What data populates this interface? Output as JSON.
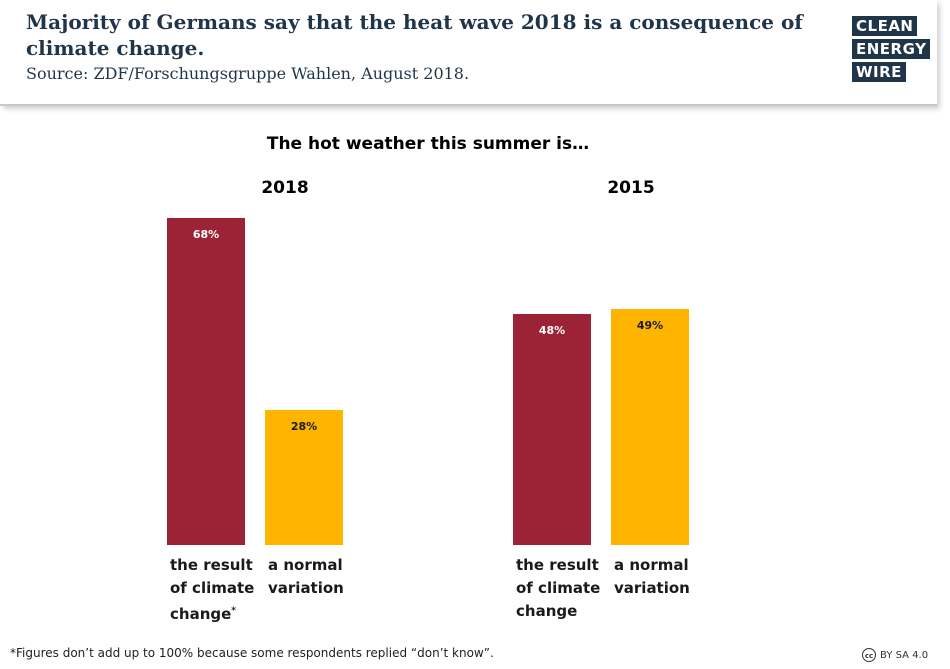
{
  "header": {
    "title": "Majority of Germans say that the heat wave 2018 is a consequence of climate change.",
    "source": "Source: ZDF/Forschungsgruppe Wahlen, August 2018.",
    "logo": [
      "CLEAN",
      "ENERGY",
      "WIRE"
    ]
  },
  "colors": {
    "climate_change": "#9b2335",
    "normal_variation": "#ffb400",
    "title": "#1f3549"
  },
  "chart_data": {
    "type": "bar",
    "title": "The hot weather this summer is…",
    "groups": [
      {
        "name": "2018",
        "bars": [
          {
            "category": "the result of climate change",
            "lines": [
              "the result",
              "of climate",
              "change"
            ],
            "footnote_mark": "*",
            "value": 68,
            "label": "68%"
          },
          {
            "category": "a normal variation",
            "lines": [
              "a normal",
              "variation"
            ],
            "value": 28,
            "label": "28%"
          }
        ]
      },
      {
        "name": "2015",
        "bars": [
          {
            "category": "the result of climate change",
            "lines": [
              "the result",
              "of climate",
              "change"
            ],
            "value": 48,
            "label": "48%"
          },
          {
            "category": "a normal variation",
            "lines": [
              "a normal",
              "variation"
            ],
            "value": 49,
            "label": "49%"
          }
        ]
      }
    ],
    "ylim": [
      0,
      68
    ],
    "legend": "none",
    "grid": false
  },
  "footer": {
    "footnote": "*Figures don’t add up to 100% because some respondents replied “don’t know”.",
    "license": "BY SA 4.0",
    "license_icon": "cc"
  }
}
